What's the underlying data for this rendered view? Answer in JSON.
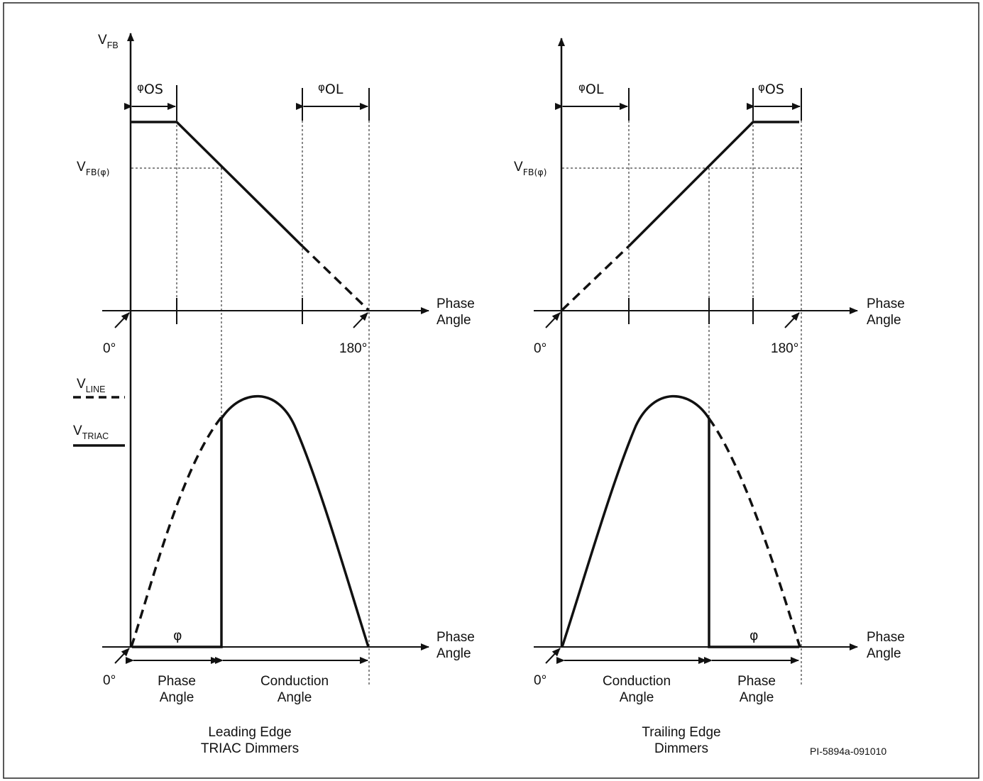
{
  "figure_id": "PI-5894a-091010",
  "left": {
    "y_axis_label": "V",
    "y_axis_sub": "FB",
    "vfb_phi_label": "V",
    "vfb_phi_sub": "FB(φ)",
    "phi_os_label": "φ",
    "phi_os_sub": "OS",
    "phi_ol_label": "φ",
    "phi_ol_sub": "OL",
    "x_axis_label_top_line1": "Phase",
    "x_axis_label_top_line2": "Angle",
    "zero_label_top": "0°",
    "label_180": "180°",
    "vline_label": "V",
    "vline_sub": "LINE",
    "vtriac_label": "V",
    "vtriac_sub": "TRIAC",
    "phi_label": "φ",
    "x_axis_label_bottom_line1": "Phase",
    "x_axis_label_bottom_line2": "Angle",
    "zero_label_bottom": "0°",
    "phase_angle_line1": "Phase",
    "phase_angle_line2": "Angle",
    "conduction_angle_line1": "Conduction",
    "conduction_angle_line2": "Angle",
    "caption_line1": "Leading Edge",
    "caption_line2": "TRIAC Dimmers"
  },
  "right": {
    "vfb_phi_label": "V",
    "vfb_phi_sub": "FB(φ)",
    "phi_ol_label": "φ",
    "phi_ol_sub": "OL",
    "phi_os_label": "φ",
    "phi_os_sub": "OS",
    "x_axis_label_top_line1": "Phase",
    "x_axis_label_top_line2": "Angle",
    "zero_label_top": "0°",
    "label_180": "180°",
    "phi_label": "φ",
    "x_axis_label_bottom_line1": "Phase",
    "x_axis_label_bottom_line2": "Angle",
    "zero_label_bottom": "0°",
    "conduction_angle_line1": "Conduction",
    "conduction_angle_line2": "Angle",
    "phase_angle_line1": "Phase",
    "phase_angle_line2": "Angle",
    "caption_line1": "Trailing Edge",
    "caption_line2": "Dimmers"
  },
  "colors": {
    "ink": "#111111",
    "background": "#ffffff",
    "border": "#222222"
  }
}
